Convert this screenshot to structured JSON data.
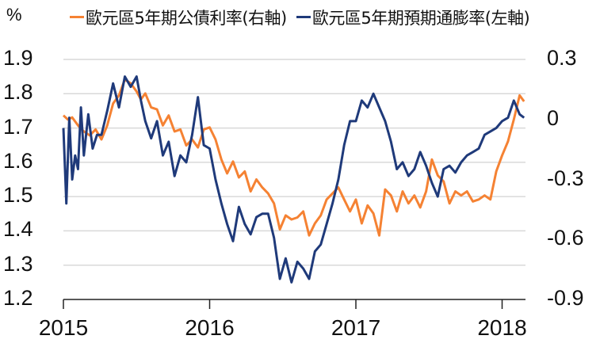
{
  "chart_data": {
    "type": "line",
    "title": "",
    "unit_label": "%",
    "xlabel": "",
    "ylabel_left": "%",
    "ylabel_right": "",
    "x_ticks": [
      "2015",
      "2016",
      "2017",
      "2018"
    ],
    "y_left_ticks": [
      "1.9",
      "1.8",
      "1.7",
      "1.6",
      "1.5",
      "1.4",
      "1.3",
      "1.2"
    ],
    "y_right_ticks": [
      "0.3",
      "0",
      "-0.3",
      "-0.6",
      "-0.9"
    ],
    "ylim_left": [
      1.2,
      1.9
    ],
    "ylim_right": [
      -0.9,
      0.3
    ],
    "grid": true,
    "legend_position": "top",
    "colors": {
      "bond_yield": "#F58233",
      "inflation_expectation": "#1F3A7A",
      "grid": "#D9D9D9",
      "axis": "#222222"
    },
    "series": [
      {
        "name": "歐元區5年期公債利率(右軸)",
        "axis": "right",
        "color": "#F58233",
        "x": [
          2015.0,
          2015.03,
          2015.06,
          2015.1,
          2015.14,
          2015.18,
          2015.22,
          2015.26,
          2015.3,
          2015.34,
          2015.38,
          2015.42,
          2015.46,
          2015.5,
          2015.53,
          2015.56,
          2015.6,
          2015.64,
          2015.68,
          2015.72,
          2015.76,
          2015.8,
          2015.84,
          2015.88,
          2015.92,
          2015.96,
          2016.0,
          2016.04,
          2016.08,
          2016.12,
          2016.16,
          2016.2,
          2016.24,
          2016.28,
          2016.32,
          2016.36,
          2016.4,
          2016.44,
          2016.48,
          2016.52,
          2016.56,
          2016.6,
          2016.64,
          2016.68,
          2016.72,
          2016.76,
          2016.8,
          2016.84,
          2016.88,
          2016.92,
          2016.96,
          2017.0,
          2017.04,
          2017.08,
          2017.12,
          2017.16,
          2017.2,
          2017.24,
          2017.28,
          2017.32,
          2017.36,
          2017.4,
          2017.44,
          2017.48,
          2017.52,
          2017.56,
          2017.6,
          2017.64,
          2017.68,
          2017.72,
          2017.76,
          2017.8,
          2017.84,
          2017.88,
          2017.92,
          2017.96,
          2018.0,
          2018.04,
          2018.08,
          2018.12,
          2018.15
        ],
        "values": [
          0.02,
          0.0,
          0.01,
          -0.03,
          -0.06,
          -0.08,
          -0.05,
          -0.1,
          -0.03,
          0.08,
          0.12,
          0.2,
          0.18,
          0.14,
          0.1,
          0.13,
          0.06,
          0.05,
          -0.03,
          0.02,
          -0.06,
          -0.05,
          -0.13,
          -0.1,
          -0.14,
          -0.05,
          -0.04,
          -0.1,
          -0.2,
          -0.27,
          -0.21,
          -0.29,
          -0.26,
          -0.36,
          -0.3,
          -0.34,
          -0.37,
          -0.42,
          -0.55,
          -0.48,
          -0.5,
          -0.49,
          -0.46,
          -0.58,
          -0.52,
          -0.48,
          -0.4,
          -0.37,
          -0.34,
          -0.4,
          -0.46,
          -0.4,
          -0.52,
          -0.43,
          -0.47,
          -0.58,
          -0.35,
          -0.38,
          -0.46,
          -0.36,
          -0.42,
          -0.38,
          -0.44,
          -0.36,
          -0.2,
          -0.28,
          -0.31,
          -0.42,
          -0.36,
          -0.38,
          -0.36,
          -0.41,
          -0.4,
          -0.38,
          -0.4,
          -0.26,
          -0.18,
          -0.11,
          0.0,
          0.12,
          0.09
        ]
      },
      {
        "name": "歐元區5年期預期通膨率(左軸)",
        "axis": "left",
        "color": "#1F3A7A",
        "x": [
          2015.0,
          2015.02,
          2015.04,
          2015.06,
          2015.08,
          2015.1,
          2015.12,
          2015.14,
          2015.17,
          2015.2,
          2015.23,
          2015.26,
          2015.3,
          2015.34,
          2015.38,
          2015.42,
          2015.46,
          2015.5,
          2015.53,
          2015.56,
          2015.6,
          2015.64,
          2015.68,
          2015.72,
          2015.76,
          2015.8,
          2015.84,
          2015.88,
          2015.92,
          2015.96,
          2016.0,
          2016.04,
          2016.08,
          2016.12,
          2016.16,
          2016.2,
          2016.24,
          2016.28,
          2016.32,
          2016.36,
          2016.4,
          2016.44,
          2016.48,
          2016.52,
          2016.56,
          2016.6,
          2016.64,
          2016.68,
          2016.72,
          2016.76,
          2016.8,
          2016.84,
          2016.88,
          2016.92,
          2016.96,
          2017.0,
          2017.04,
          2017.08,
          2017.12,
          2017.16,
          2017.2,
          2017.24,
          2017.28,
          2017.32,
          2017.36,
          2017.4,
          2017.44,
          2017.48,
          2017.52,
          2017.56,
          2017.6,
          2017.64,
          2017.68,
          2017.72,
          2017.76,
          2017.8,
          2017.84,
          2017.88,
          2017.92,
          2017.96,
          2018.0,
          2018.04,
          2018.08,
          2018.12,
          2018.15
        ],
        "values": [
          1.7,
          1.48,
          1.73,
          1.55,
          1.62,
          1.58,
          1.76,
          1.62,
          1.74,
          1.64,
          1.68,
          1.68,
          1.75,
          1.83,
          1.76,
          1.85,
          1.82,
          1.85,
          1.78,
          1.72,
          1.67,
          1.72,
          1.62,
          1.66,
          1.56,
          1.62,
          1.6,
          1.68,
          1.79,
          1.65,
          1.64,
          1.55,
          1.48,
          1.42,
          1.37,
          1.47,
          1.42,
          1.39,
          1.44,
          1.45,
          1.45,
          1.38,
          1.26,
          1.32,
          1.25,
          1.31,
          1.29,
          1.26,
          1.34,
          1.36,
          1.42,
          1.48,
          1.55,
          1.65,
          1.72,
          1.72,
          1.78,
          1.76,
          1.8,
          1.76,
          1.72,
          1.66,
          1.58,
          1.6,
          1.56,
          1.58,
          1.63,
          1.59,
          1.54,
          1.5,
          1.58,
          1.59,
          1.57,
          1.6,
          1.62,
          1.63,
          1.64,
          1.68,
          1.69,
          1.7,
          1.72,
          1.73,
          1.78,
          1.74,
          1.73
        ]
      }
    ]
  },
  "legend": {
    "items": [
      {
        "label": "歐元區5年期公債利率(右軸)",
        "color": "#F58233"
      },
      {
        "label": "歐元區5年期預期通膨率(左軸)",
        "color": "#1F3A7A"
      }
    ]
  }
}
